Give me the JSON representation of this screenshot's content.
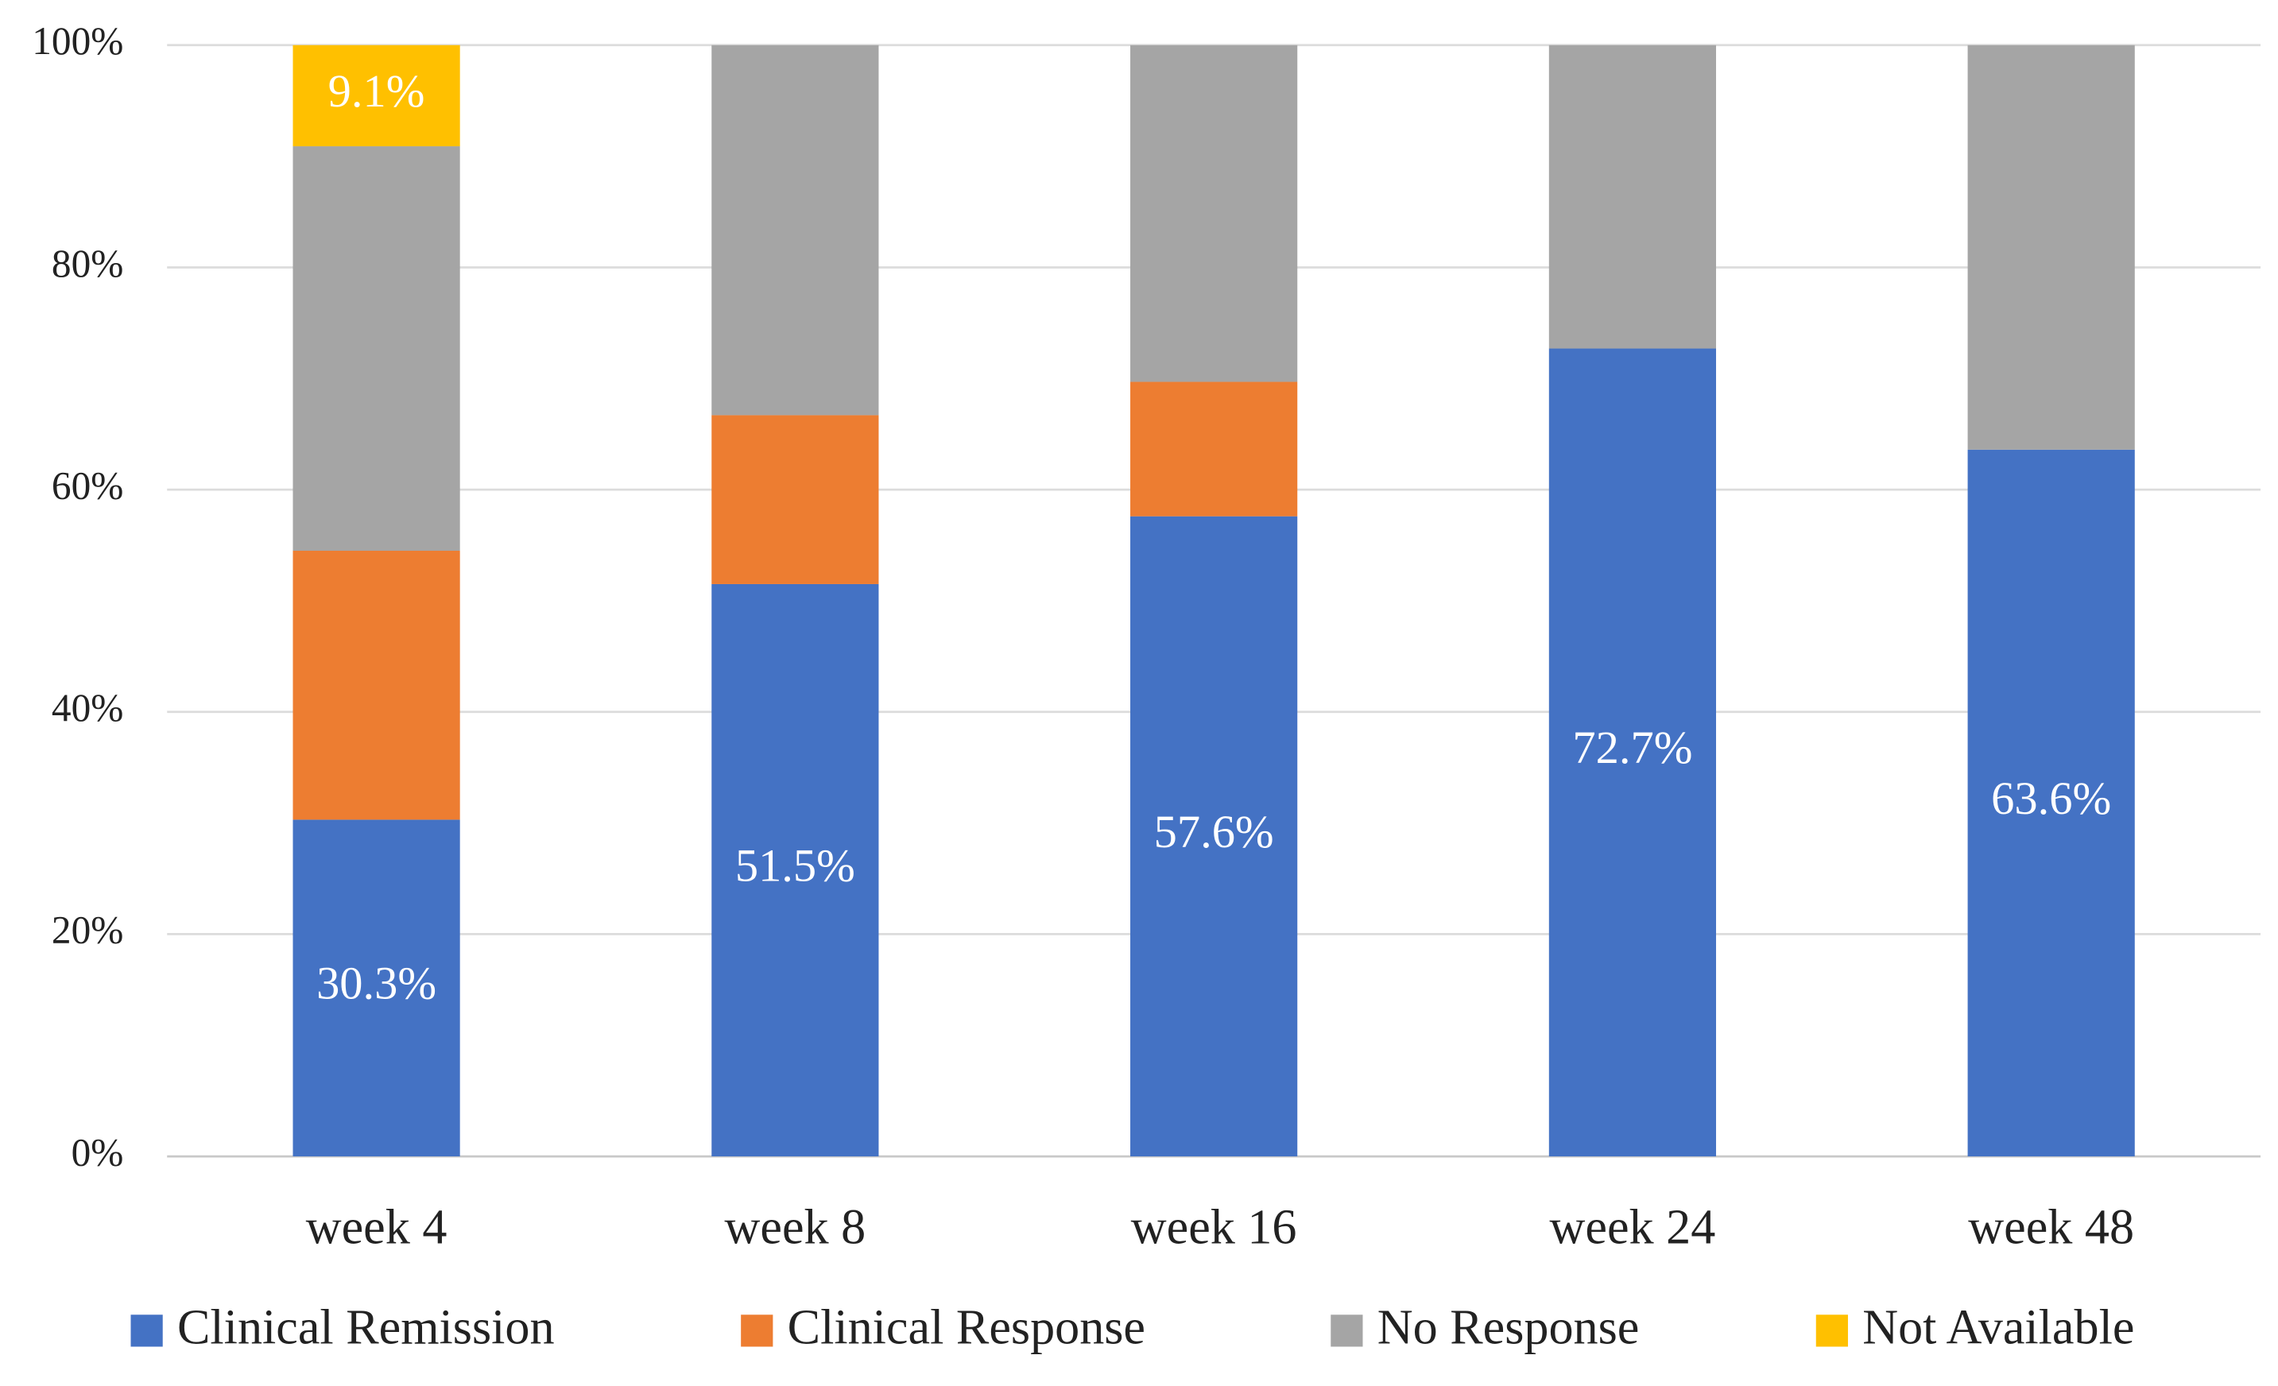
{
  "chart_data": {
    "type": "stacked_bar",
    "categories": [
      "week 4",
      "week 8",
      "week 16",
      "week 24",
      "week 48"
    ],
    "series": [
      {
        "name": "Clinical Remission",
        "color": "#4472c4",
        "values": [
          30.3,
          51.5,
          57.6,
          72.7,
          63.6
        ],
        "value_labels": [
          "30.3%",
          "51.5%",
          "57.6%",
          "72.7%",
          "63.6%"
        ]
      },
      {
        "name": "Clinical Response",
        "color": "#ed7d31",
        "values": [
          24.2,
          15.2,
          12.1,
          0,
          0
        ]
      },
      {
        "name": "No Response",
        "color": "#a5a5a5",
        "values": [
          36.4,
          33.3,
          30.3,
          27.3,
          36.4
        ]
      },
      {
        "name": "Not Available",
        "color": "#ffc000",
        "values": [
          9.1,
          0,
          0,
          0,
          0
        ],
        "value_labels": [
          "9.1%",
          null,
          null,
          null,
          null
        ]
      }
    ],
    "ylim": [
      0,
      100
    ],
    "yticks": [
      {
        "value": 0,
        "label": "0%"
      },
      {
        "value": 20,
        "label": "20%"
      },
      {
        "value": 40,
        "label": "40%"
      },
      {
        "value": 60,
        "label": "60%"
      },
      {
        "value": 80,
        "label": "80%"
      },
      {
        "value": 100,
        "label": "100%"
      }
    ],
    "grid": true,
    "legend": "bottom"
  }
}
